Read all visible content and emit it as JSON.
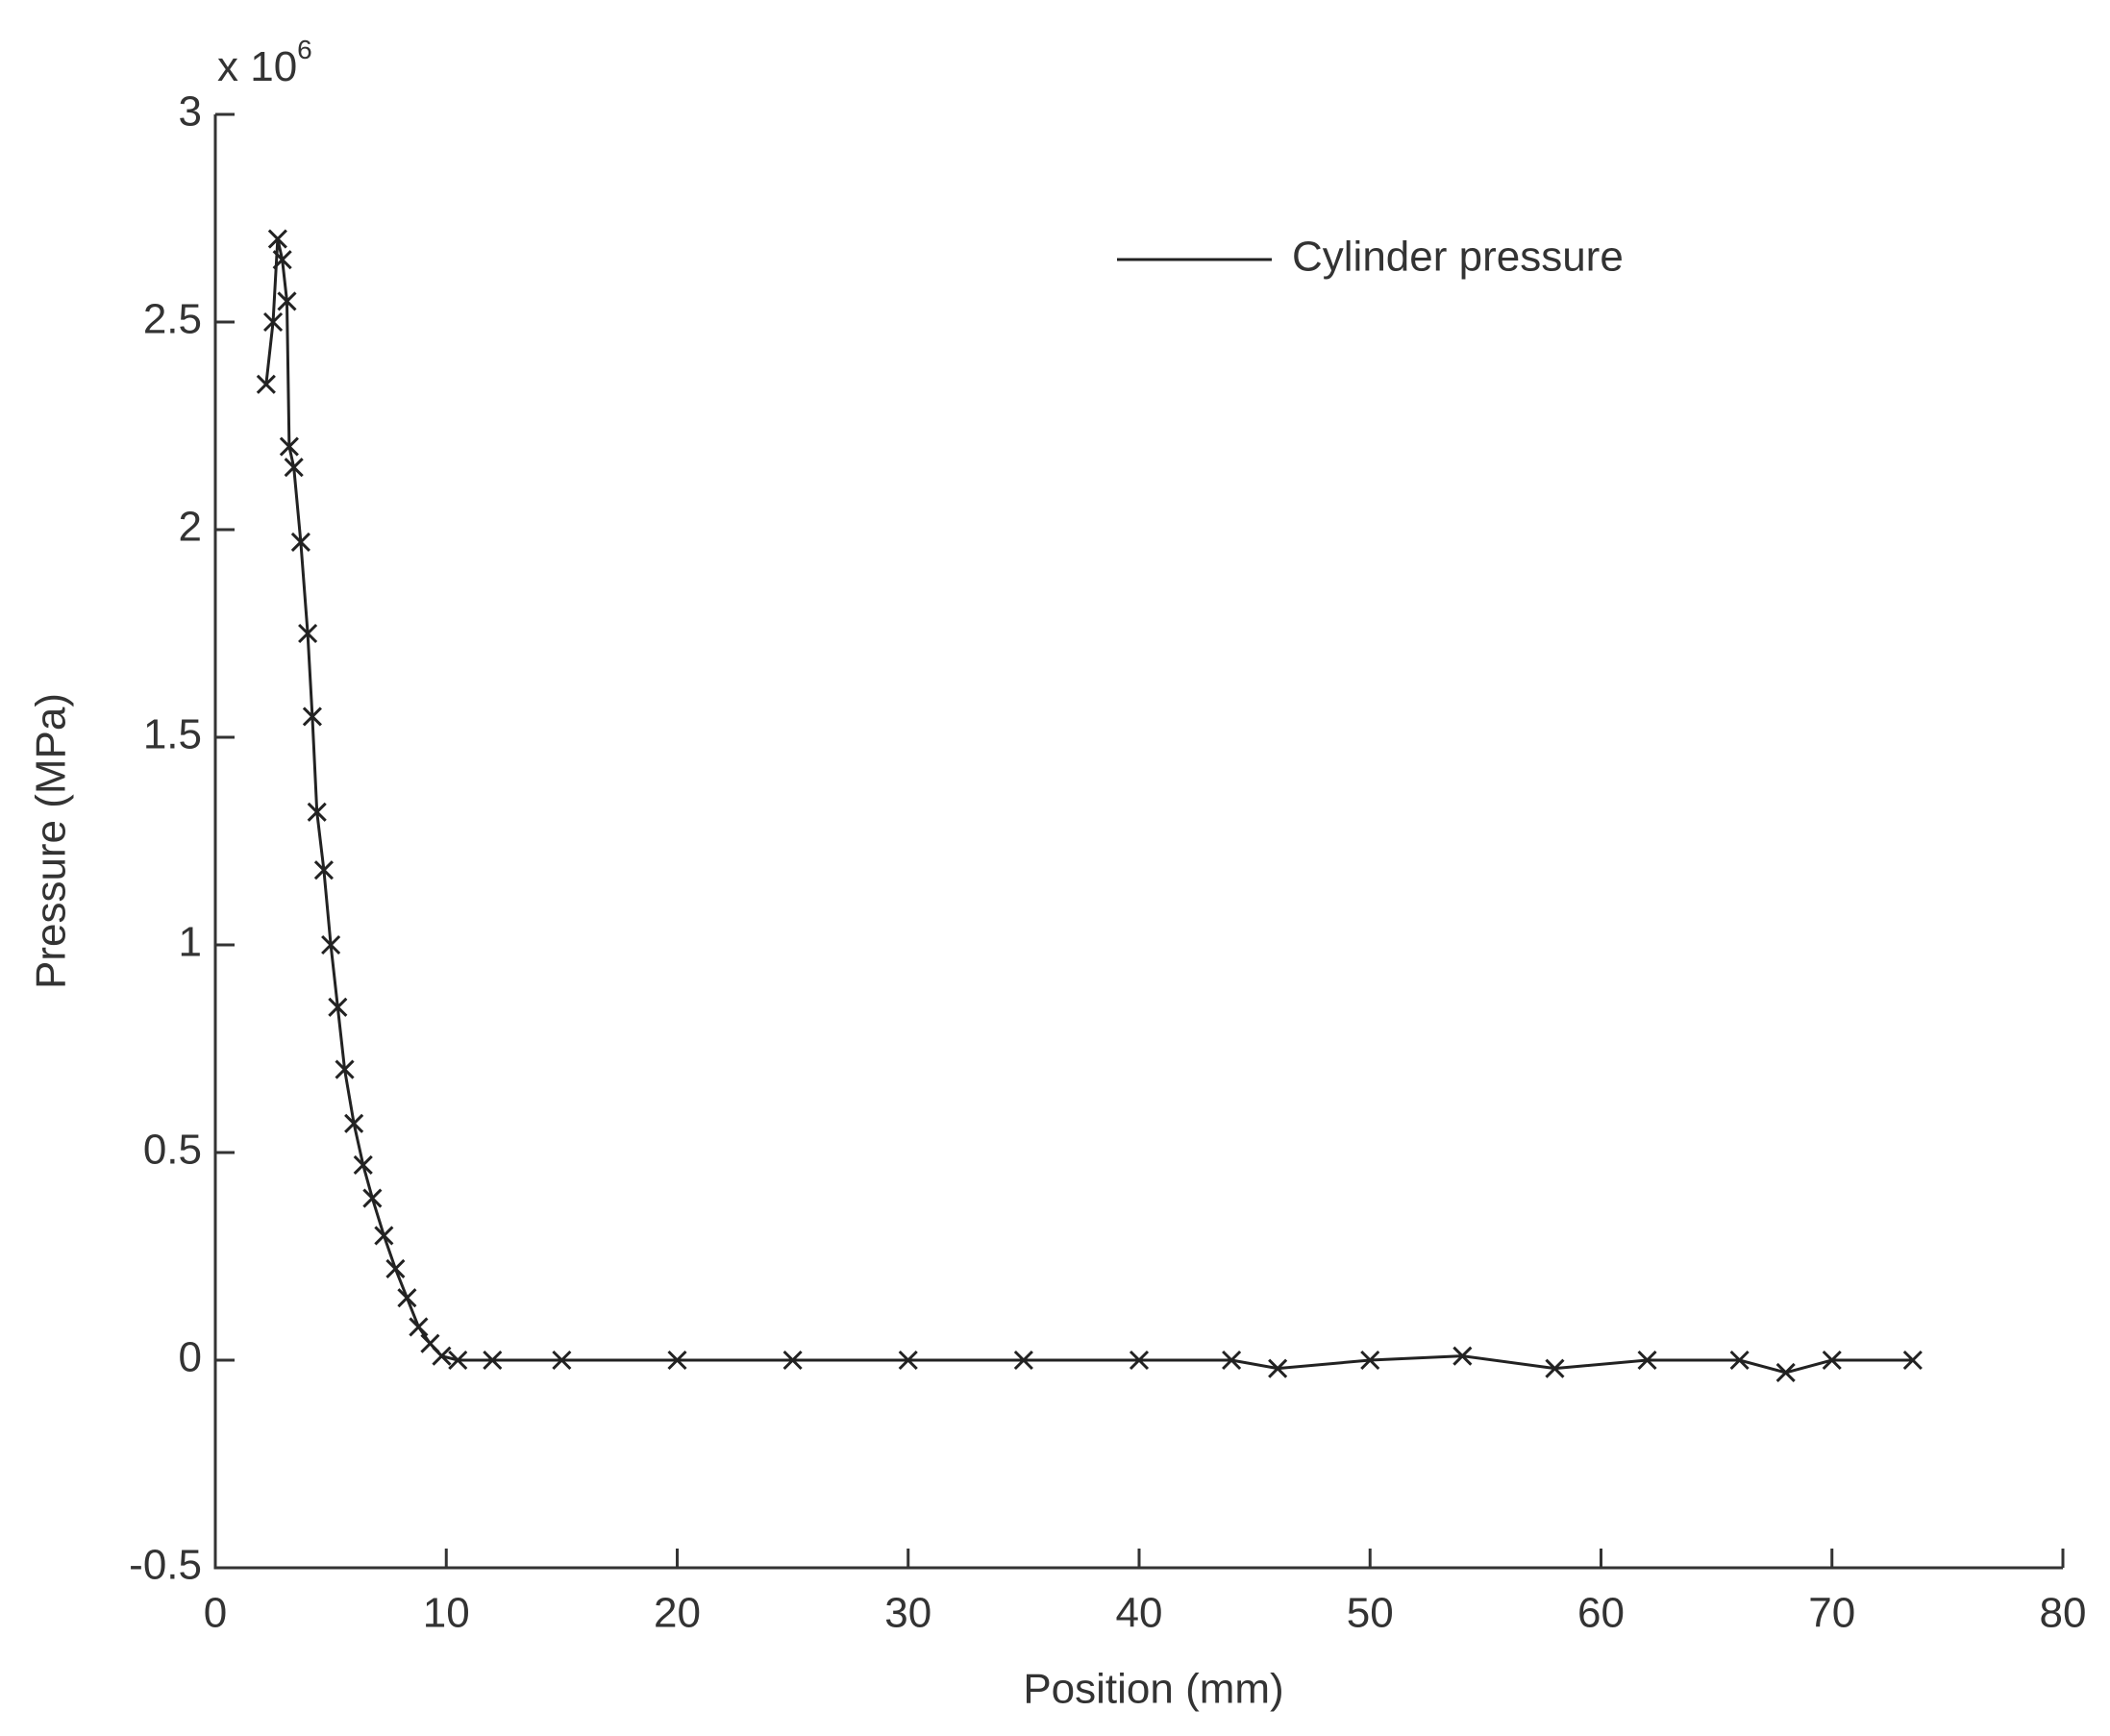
{
  "chart_data": {
    "type": "line",
    "x_label": "Position (mm)",
    "y_label": "Pressure (MPa)",
    "y_scale_label": {
      "base": "x 10",
      "exponent": "6"
    },
    "x": [
      2.2,
      2.5,
      2.7,
      2.9,
      3.1,
      3.2,
      3.4,
      3.7,
      4.0,
      4.2,
      4.4,
      4.7,
      5.0,
      5.3,
      5.6,
      6.0,
      6.4,
      6.8,
      7.3,
      7.8,
      8.3,
      8.8,
      9.3,
      9.8,
      10.5,
      12,
      15,
      20,
      25,
      30,
      35,
      40,
      44,
      46,
      50,
      54,
      58,
      62,
      66,
      68,
      70,
      73.5
    ],
    "series": [
      {
        "name": "Cylinder pressure",
        "color": "#222222",
        "values": [
          2.35,
          2.5,
          2.7,
          2.65,
          2.55,
          2.2,
          2.15,
          1.97,
          1.75,
          1.55,
          1.32,
          1.18,
          1.0,
          0.85,
          0.7,
          0.57,
          0.47,
          0.39,
          0.3,
          0.22,
          0.15,
          0.08,
          0.04,
          0.01,
          0,
          0,
          0,
          0,
          0,
          0,
          0,
          0,
          0,
          -0.02,
          0,
          0.01,
          -0.02,
          0,
          0,
          -0.03,
          0,
          0
        ]
      }
    ],
    "xlim": [
      0,
      80
    ],
    "xticks": [
      0,
      10,
      20,
      30,
      40,
      50,
      60,
      70,
      80
    ],
    "ylim": [
      -0.5,
      3
    ],
    "yticks": [
      -0.5,
      0,
      0.5,
      1,
      1.5,
      2,
      2.5,
      3
    ],
    "legend": "upper right",
    "grid": false
  }
}
